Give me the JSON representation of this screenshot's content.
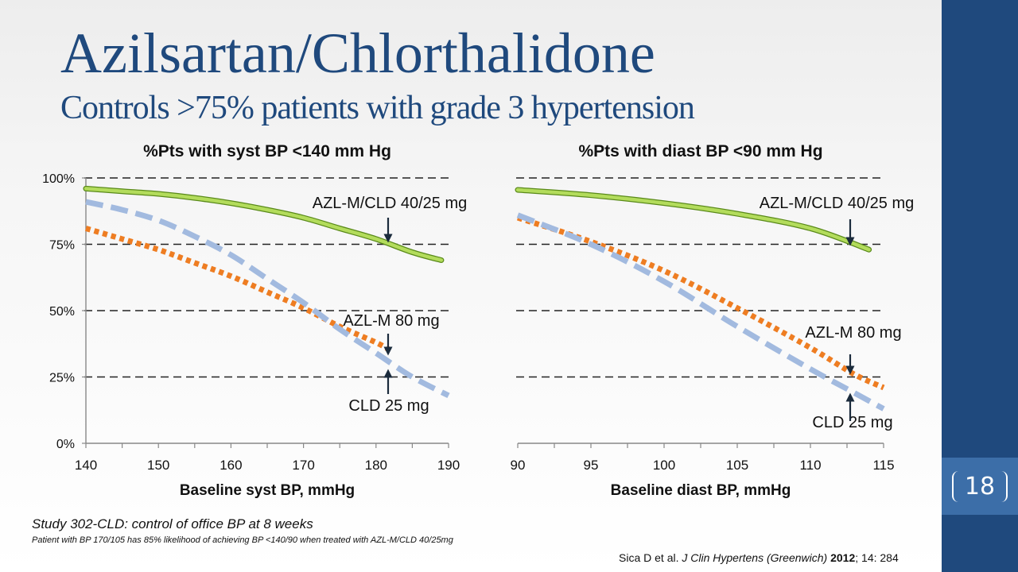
{
  "slide": {
    "title": "Azilsartan/Chlorthalidone",
    "subtitle": "Controls >75% patients with grade 3 hypertension",
    "page_number": "18",
    "study_note": "Study 302-CLD: control of office BP at 8 weeks",
    "footnote": "Patient with BP 170/105 has 85% likelihood of achieving BP <140/90 when treated with AZL-M/CLD 40/25mg",
    "citation": {
      "authors": "Sica D et al.",
      "journal": "J Clin Hypertens (Greenwich)",
      "year": "2012",
      "rest": "; 14: 284"
    }
  },
  "colors": {
    "title": "#1f497d",
    "side_bar": "#1f497d",
    "page_box": "#3c6ea8",
    "azl_cld": "#b3dc5c",
    "azl_cld_edge": "#5a8a1a",
    "azl_m": "#ee7d22",
    "cld": "#a2badf",
    "gridline": "#222222",
    "axis": "#888888",
    "arrow": "#1b2b3c"
  },
  "chart_data": [
    {
      "type": "line",
      "title": "%Pts with syst BP <140 mm Hg",
      "xlabel": "Baseline syst BP, mmHg",
      "ylabel": "",
      "xlim": [
        140,
        190
      ],
      "ylim": [
        0,
        100
      ],
      "x_ticks": [
        140,
        150,
        160,
        170,
        180,
        190
      ],
      "y_ticks": [
        0,
        25,
        50,
        75,
        100
      ],
      "y_tick_labels": [
        "0%",
        "25%",
        "50%",
        "75%",
        "100%"
      ],
      "grid": "horizontal dashed",
      "series": [
        {
          "name": "AZL-M/CLD 40/25 mg",
          "style": "solid",
          "x": [
            140,
            145,
            150,
            155,
            160,
            165,
            170,
            175,
            180,
            185,
            189
          ],
          "y": [
            96,
            95,
            94,
            92.5,
            90.5,
            88,
            85,
            81,
            77,
            72,
            69
          ]
        },
        {
          "name": "AZL-M 80 mg",
          "style": "dotted",
          "x": [
            140,
            145,
            150,
            155,
            160,
            165,
            170,
            175,
            180,
            182
          ],
          "y": [
            81,
            77,
            73,
            68,
            63,
            57,
            51,
            44,
            38,
            35
          ]
        },
        {
          "name": "CLD 25 mg",
          "style": "dashed",
          "x": [
            140,
            145,
            150,
            155,
            160,
            165,
            170,
            175,
            180,
            185,
            190
          ],
          "y": [
            91,
            88,
            84,
            78,
            71,
            62,
            53,
            43,
            34,
            25,
            18
          ]
        }
      ],
      "annotations": [
        {
          "text": "AZL-M/CLD 40/25 mg",
          "x": 182,
          "arrow_to": 76,
          "side": "above"
        },
        {
          "text": "AZL-M 80 mg",
          "x": 182,
          "arrow_to": 36,
          "side": "above"
        },
        {
          "text": "CLD 25 mg",
          "x": 182,
          "arrow_to": 30,
          "side": "below"
        }
      ]
    },
    {
      "type": "line",
      "title": "%Pts with diast BP <90 mm Hg",
      "xlabel": "Baseline diast BP, mmHg",
      "ylabel": "",
      "xlim": [
        90,
        115
      ],
      "ylim": [
        0,
        100
      ],
      "x_ticks": [
        90,
        95,
        100,
        105,
        110,
        115
      ],
      "y_ticks": [
        0,
        25,
        50,
        75,
        100
      ],
      "grid": "horizontal dashed",
      "series": [
        {
          "name": "AZL-M/CLD 40/25 mg",
          "style": "solid",
          "x": [
            90,
            95,
            100,
            105,
            110,
            114
          ],
          "y": [
            95.5,
            93.5,
            90.5,
            86.5,
            81,
            73
          ]
        },
        {
          "name": "AZL-M 80 mg",
          "style": "dotted",
          "x": [
            90,
            95,
            100,
            105,
            110,
            113,
            115
          ],
          "y": [
            85,
            76,
            65,
            51,
            36,
            26,
            21
          ]
        },
        {
          "name": "CLD 25 mg",
          "style": "dashed",
          "x": [
            90,
            95,
            100,
            105,
            110,
            113,
            115
          ],
          "y": [
            86,
            75,
            61,
            44,
            28,
            19,
            13
          ]
        }
      ],
      "annotations": [
        {
          "text": "AZL-M/CLD 40/25 mg",
          "x": 113,
          "arrow_to": 74,
          "side": "above"
        },
        {
          "text": "AZL-M 80 mg",
          "x": 113,
          "arrow_to": 27,
          "side": "above"
        },
        {
          "text": "CLD 25 mg",
          "x": 113,
          "arrow_to": 17,
          "side": "below"
        }
      ]
    }
  ]
}
